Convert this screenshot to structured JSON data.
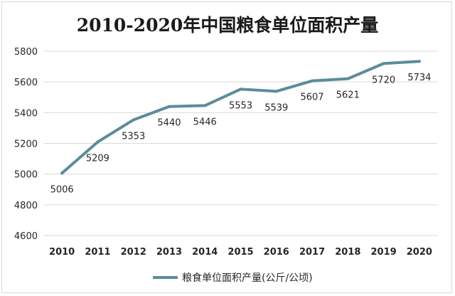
{
  "chart_data": {
    "type": "line",
    "title": "2010-2020年中国粮食单位面积产量",
    "xlabel": "",
    "ylabel": "",
    "categories": [
      "2010",
      "2011",
      "2012",
      "2013",
      "2014",
      "2015",
      "2016",
      "2017",
      "2018",
      "2019",
      "2020"
    ],
    "series": [
      {
        "name": "粮食单位面积产量(公斤/公顷)",
        "values": [
          5006,
          5209,
          5353,
          5440,
          5446,
          5553,
          5539,
          5607,
          5621,
          5720,
          5734
        ]
      }
    ],
    "ylim": [
      4600,
      5800
    ],
    "yticks": [
      4600,
      4800,
      5000,
      5200,
      5400,
      5600,
      5800
    ],
    "grid": true,
    "legend_position": "bottom",
    "series_color": "#5b8c9a",
    "grid_color": "#d9d9d9"
  }
}
